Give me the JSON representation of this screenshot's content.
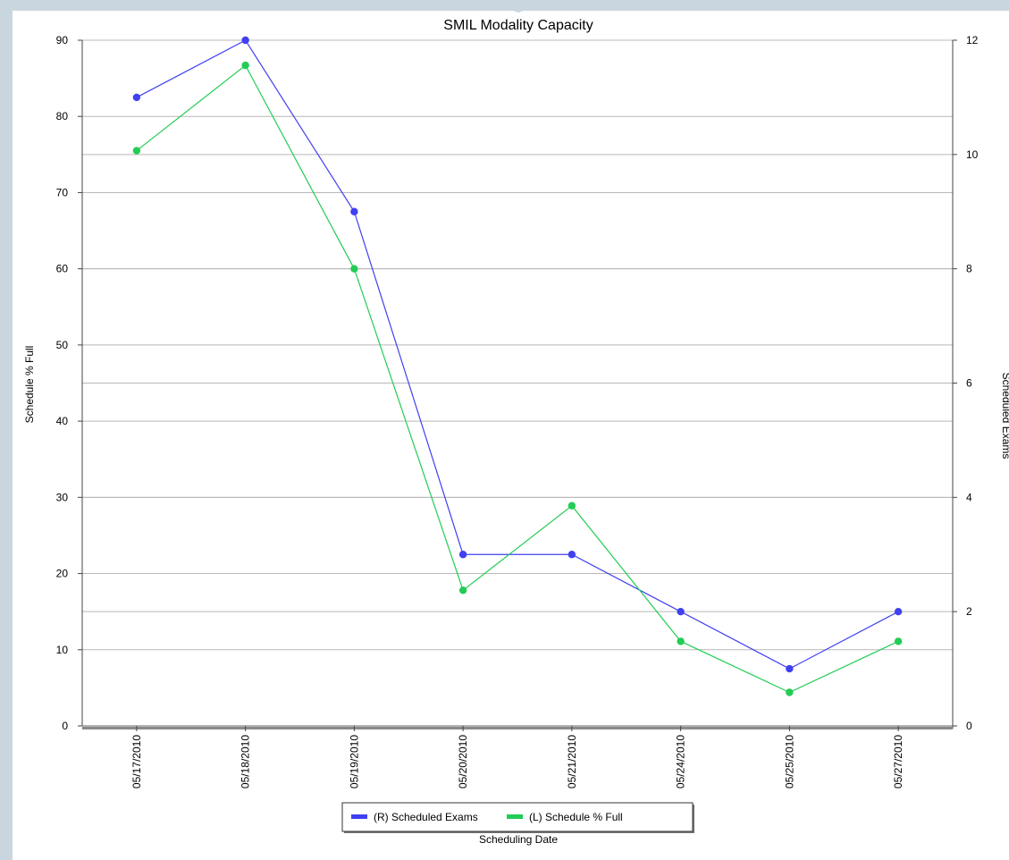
{
  "chart_data": {
    "type": "line",
    "title": "SMIL Modality  Capacity",
    "xlabel": "Scheduling Date",
    "ylabel_left": "Schedule % Full",
    "ylabel_right": "Scheduled Exams",
    "categories": [
      "05/17/2010",
      "05/18/2010",
      "05/19/2010",
      "05/20/2010",
      "05/21/2010",
      "05/24/2010",
      "05/25/2010",
      "05/27/2010"
    ],
    "ylim_left": [
      0,
      90
    ],
    "ylim_right": [
      0,
      12
    ],
    "yticks_left": [
      0,
      10,
      20,
      30,
      40,
      50,
      60,
      70,
      80,
      90
    ],
    "yticks_right": [
      0,
      2,
      4,
      6,
      8,
      10,
      12
    ],
    "grid": true,
    "legend_position": "bottom",
    "series": [
      {
        "name": "(R)  Scheduled Exams",
        "axis": "right",
        "color": "#4040f0",
        "values": [
          11,
          12,
          9,
          3,
          3,
          2,
          1,
          2
        ]
      },
      {
        "name": "(L)  Schedule % Full",
        "axis": "left",
        "color": "#22cc55",
        "values": [
          75.5,
          86.7,
          60,
          17.8,
          28.9,
          11.1,
          4.4,
          11.1
        ]
      }
    ]
  }
}
